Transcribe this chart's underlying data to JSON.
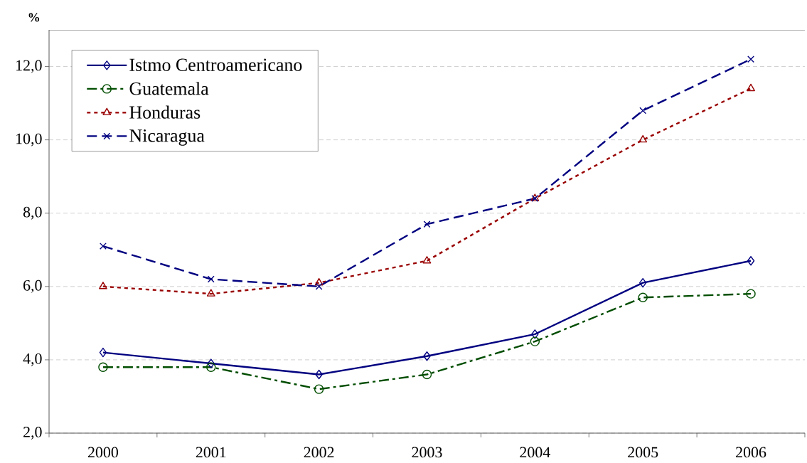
{
  "chart_data": {
    "type": "line",
    "ylabel": "%",
    "categories": [
      "2000",
      "2001",
      "2002",
      "2003",
      "2004",
      "2005",
      "2006"
    ],
    "series": [
      {
        "name": "Istmo Centroamericano",
        "color": "#000080",
        "marker": "diamond",
        "line_style": "solid",
        "values": [
          4.2,
          3.9,
          3.6,
          4.1,
          4.7,
          6.1,
          6.7
        ]
      },
      {
        "name": "Guatemala",
        "color": "#004d00",
        "marker": "circle",
        "line_style": "dashdot",
        "values": [
          3.8,
          3.8,
          3.2,
          3.6,
          4.5,
          5.7,
          5.8
        ]
      },
      {
        "name": "Honduras",
        "color": "#990000",
        "marker": "triangle",
        "line_style": "dotted",
        "values": [
          6.0,
          5.8,
          6.1,
          6.7,
          8.4,
          10.0,
          11.4
        ]
      },
      {
        "name": "Nicaragua",
        "color": "#000080",
        "marker": "cross",
        "line_style": "dashed",
        "values": [
          7.1,
          6.2,
          6.0,
          7.7,
          8.4,
          10.8,
          12.2
        ]
      }
    ],
    "ylim": [
      2,
      13
    ],
    "yticks": [
      {
        "value": 2,
        "label": "2,0"
      },
      {
        "value": 4,
        "label": "4,0"
      },
      {
        "value": 6,
        "label": "6,0"
      },
      {
        "value": 8,
        "label": "8,0"
      },
      {
        "value": 10,
        "label": "10,0"
      },
      {
        "value": 12,
        "label": "12,0"
      }
    ],
    "grid": "y",
    "legend": "top left"
  }
}
